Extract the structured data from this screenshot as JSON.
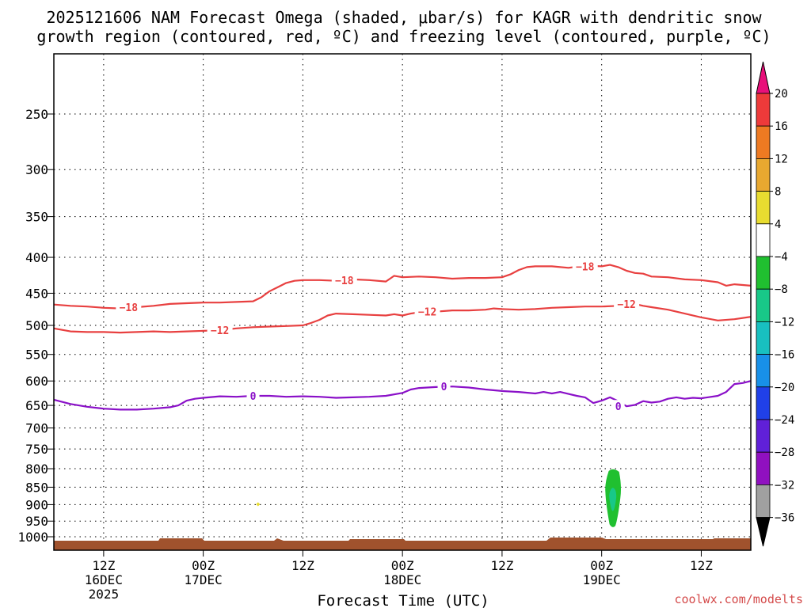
{
  "chart_data": {
    "type": "time-height cross section",
    "title_line1": "2025121606 NAM Forecast Omega (shaded, μbar/s) for KAGR with dendritic snow",
    "title_line2": "growth region (contoured, red, ºC) and freezing level (contoured, purple, ºC)",
    "xlabel": "Forecast Time (UTC)",
    "credit": "coolwx.com/modelts",
    "x_ticks": [
      {
        "hour": 6,
        "lines": [
          "12Z",
          "16DEC",
          "2025"
        ]
      },
      {
        "hour": 18,
        "lines": [
          "00Z",
          "17DEC"
        ]
      },
      {
        "hour": 30,
        "lines": [
          "12Z"
        ]
      },
      {
        "hour": 42,
        "lines": [
          "00Z",
          "18DEC"
        ]
      },
      {
        "hour": 54,
        "lines": [
          "12Z"
        ]
      },
      {
        "hour": 66,
        "lines": [
          "00Z",
          "19DEC"
        ]
      },
      {
        "hour": 78,
        "lines": [
          "12Z"
        ]
      }
    ],
    "xlim_hours": [
      0,
      84
    ],
    "ylim_hpa": [
      1050,
      200
    ],
    "y_ticks": [
      "250",
      "300",
      "350",
      "400",
      "450",
      "500",
      "550",
      "600",
      "650",
      "700",
      "750",
      "800",
      "850",
      "900",
      "950",
      "1000"
    ],
    "colorbar": {
      "labels": [
        "20",
        "16",
        "12",
        "8",
        "4",
        "−4",
        "−8",
        "−12",
        "−16",
        "−20",
        "−24",
        "−28",
        "−32",
        "−36"
      ],
      "colors": [
        "#ee3a3a",
        "#ee7a22",
        "#e8a830",
        "#e8dc30",
        "#ffffff",
        "#20c030",
        "#18c888",
        "#18c0c0",
        "#1890e8",
        "#2040e8",
        "#6020d8",
        "#9010c0",
        "#a0a0a0"
      ],
      "top_arrow_color": "#e8107a",
      "bottom_arrow_color": "#000000"
    },
    "series": [
      {
        "name": "-18",
        "color": "#e84040",
        "points": [
          [
            0,
            467
          ],
          [
            2,
            469
          ],
          [
            4,
            470
          ],
          [
            6,
            472
          ],
          [
            8,
            473
          ],
          [
            10,
            471
          ],
          [
            12,
            469
          ],
          [
            14,
            466
          ],
          [
            16,
            465
          ],
          [
            18,
            464
          ],
          [
            20,
            464
          ],
          [
            22,
            463
          ],
          [
            24,
            462
          ],
          [
            25,
            456
          ],
          [
            26,
            447
          ],
          [
            27,
            441
          ],
          [
            28,
            435
          ],
          [
            29,
            432
          ],
          [
            30,
            431
          ],
          [
            32,
            431
          ],
          [
            34,
            432
          ],
          [
            36,
            430
          ],
          [
            38,
            431
          ],
          [
            40,
            433
          ],
          [
            41,
            425
          ],
          [
            42,
            427
          ],
          [
            44,
            426
          ],
          [
            46,
            427
          ],
          [
            48,
            429
          ],
          [
            50,
            428
          ],
          [
            52,
            428
          ],
          [
            54,
            427
          ],
          [
            55,
            423
          ],
          [
            56,
            417
          ],
          [
            57,
            413
          ],
          [
            58,
            412
          ],
          [
            60,
            412
          ],
          [
            62,
            414
          ],
          [
            64,
            411
          ],
          [
            66,
            412
          ],
          [
            67,
            410
          ],
          [
            68,
            413
          ],
          [
            69,
            418
          ],
          [
            70,
            421
          ],
          [
            71,
            422
          ],
          [
            72,
            426
          ],
          [
            74,
            427
          ],
          [
            76,
            430
          ],
          [
            78,
            431
          ],
          [
            80,
            434
          ],
          [
            81,
            439
          ],
          [
            82,
            437
          ],
          [
            84,
            439
          ]
        ],
        "labels": [
          [
            9,
            471
          ],
          [
            35,
            431
          ],
          [
            64,
            412
          ]
        ]
      },
      {
        "name": "-12",
        "color": "#e84040",
        "points": [
          [
            0,
            505
          ],
          [
            2,
            510
          ],
          [
            4,
            511
          ],
          [
            6,
            511
          ],
          [
            8,
            512
          ],
          [
            10,
            511
          ],
          [
            12,
            510
          ],
          [
            14,
            511
          ],
          [
            16,
            510
          ],
          [
            18,
            509
          ],
          [
            20,
            508
          ],
          [
            22,
            505
          ],
          [
            24,
            503
          ],
          [
            26,
            502
          ],
          [
            28,
            501
          ],
          [
            30,
            500
          ],
          [
            31,
            496
          ],
          [
            32,
            491
          ],
          [
            33,
            484
          ],
          [
            34,
            481
          ],
          [
            36,
            482
          ],
          [
            38,
            483
          ],
          [
            40,
            484
          ],
          [
            41,
            482
          ],
          [
            42,
            484
          ],
          [
            43,
            481
          ],
          [
            44,
            479
          ],
          [
            46,
            478
          ],
          [
            48,
            476
          ],
          [
            50,
            476
          ],
          [
            52,
            475
          ],
          [
            53,
            473
          ],
          [
            54,
            474
          ],
          [
            56,
            475
          ],
          [
            58,
            474
          ],
          [
            60,
            472
          ],
          [
            62,
            471
          ],
          [
            64,
            470
          ],
          [
            66,
            470
          ],
          [
            68,
            469
          ],
          [
            69,
            464
          ],
          [
            70,
            466
          ],
          [
            71,
            469
          ],
          [
            72,
            471
          ],
          [
            74,
            475
          ],
          [
            76,
            481
          ],
          [
            78,
            487
          ],
          [
            80,
            492
          ],
          [
            82,
            490
          ],
          [
            84,
            486
          ]
        ],
        "labels": [
          [
            20,
            508
          ],
          [
            45,
            478
          ],
          [
            69,
            466
          ]
        ]
      },
      {
        "name": "0",
        "color": "#8a10c8",
        "points": [
          [
            0,
            638
          ],
          [
            2,
            647
          ],
          [
            4,
            653
          ],
          [
            6,
            657
          ],
          [
            8,
            659
          ],
          [
            10,
            659
          ],
          [
            12,
            657
          ],
          [
            14,
            654
          ],
          [
            15,
            650
          ],
          [
            16,
            640
          ],
          [
            17,
            636
          ],
          [
            18,
            634
          ],
          [
            20,
            631
          ],
          [
            22,
            632
          ],
          [
            24,
            630
          ],
          [
            26,
            630
          ],
          [
            28,
            632
          ],
          [
            30,
            631
          ],
          [
            32,
            632
          ],
          [
            34,
            634
          ],
          [
            36,
            633
          ],
          [
            38,
            632
          ],
          [
            40,
            630
          ],
          [
            42,
            624
          ],
          [
            43,
            617
          ],
          [
            44,
            614
          ],
          [
            46,
            612
          ],
          [
            48,
            611
          ],
          [
            50,
            613
          ],
          [
            52,
            617
          ],
          [
            54,
            620
          ],
          [
            56,
            622
          ],
          [
            58,
            625
          ],
          [
            59,
            622
          ],
          [
            60,
            625
          ],
          [
            61,
            622
          ],
          [
            62,
            626
          ],
          [
            63,
            630
          ],
          [
            64,
            633
          ],
          [
            65,
            645
          ],
          [
            66,
            640
          ],
          [
            67,
            633
          ],
          [
            68,
            641
          ],
          [
            69,
            652
          ],
          [
            70,
            649
          ],
          [
            71,
            641
          ],
          [
            72,
            644
          ],
          [
            73,
            642
          ],
          [
            74,
            636
          ],
          [
            75,
            633
          ],
          [
            76,
            636
          ],
          [
            77,
            634
          ],
          [
            78,
            635
          ],
          [
            80,
            630
          ],
          [
            81,
            622
          ],
          [
            82,
            606
          ],
          [
            83,
            604
          ],
          [
            84,
            600
          ]
        ],
        "labels": [
          [
            24,
            630
          ],
          [
            47,
            611
          ],
          [
            68,
            652
          ]
        ]
      }
    ],
    "shaded_features": [
      {
        "type": "omega_region",
        "value_band": "-8 to -4",
        "time_hours": [
          66.4,
          68.4
        ],
        "pressure_hpa": [
          800,
          970
        ],
        "color": "#20c030"
      },
      {
        "type": "omega_region",
        "value_band": "-12 to -8",
        "time_hours": [
          66.9,
          67.8
        ],
        "pressure_hpa": [
          850,
          920
        ],
        "color": "#18c888"
      },
      {
        "type": "omega_speck",
        "value_band": "4 to 8",
        "time_hours": [
          24.5,
          24.7
        ],
        "pressure_hpa": [
          893,
          905
        ],
        "color": "#e8dc30"
      }
    ],
    "ground_color": "#a0522d",
    "grid": true
  }
}
